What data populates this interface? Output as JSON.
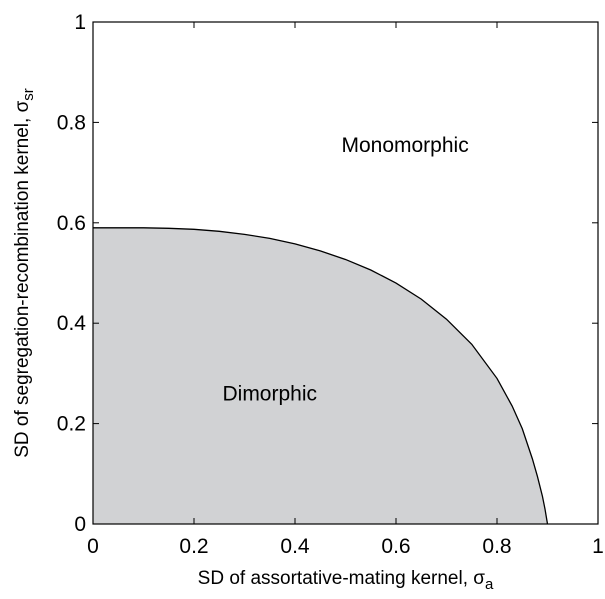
{
  "chart_data": {
    "type": "area",
    "xlabel": "SD of assortative-mating kernel, σ",
    "xlabel_subscript": "a",
    "ylabel": "SD of segregation-recombination kernel, σ",
    "ylabel_subscript": "sr",
    "xlim": [
      0,
      1
    ],
    "ylim": [
      0,
      1
    ],
    "x_ticks": [
      "0",
      "0.2",
      "0.4",
      "0.6",
      "0.8",
      "1"
    ],
    "y_ticks": [
      "0",
      "0.2",
      "0.4",
      "0.6",
      "0.8",
      "1"
    ],
    "grid": false,
    "boundary": {
      "x": [
        0,
        0.05,
        0.1,
        0.15,
        0.2,
        0.25,
        0.3,
        0.35,
        0.4,
        0.45,
        0.5,
        0.55,
        0.6,
        0.65,
        0.7,
        0.75,
        0.8,
        0.83,
        0.85,
        0.87,
        0.88,
        0.89,
        0.895,
        0.898,
        0.9
      ],
      "y": [
        0.59,
        0.59,
        0.59,
        0.589,
        0.587,
        0.583,
        0.577,
        0.569,
        0.558,
        0.544,
        0.527,
        0.506,
        0.48,
        0.448,
        0.408,
        0.358,
        0.29,
        0.235,
        0.19,
        0.13,
        0.095,
        0.055,
        0.03,
        0.012,
        0
      ]
    },
    "fill_color": "#d1d2d4",
    "regions": [
      {
        "label": "Monomorphic",
        "x": 0.618,
        "y": 0.755
      },
      {
        "label": "Dimorphic",
        "x": 0.35,
        "y": 0.26
      }
    ]
  }
}
